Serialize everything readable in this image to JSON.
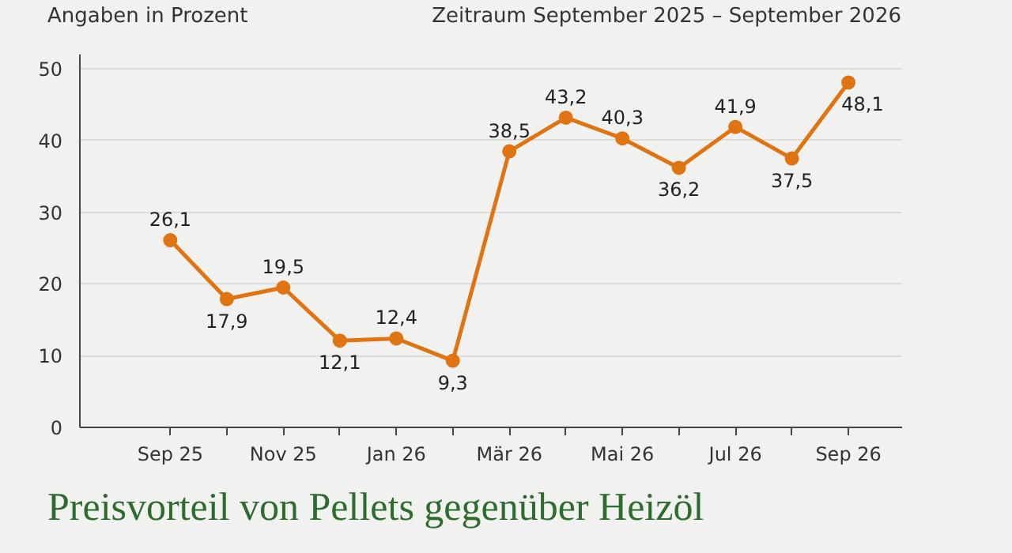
{
  "chart_data": {
    "type": "line",
    "title": "Preisvorteil von Pellets gegenüber Heizöl",
    "subtitle": "Zeitraum September 2025 – September 2026",
    "ylabel": "Angaben in Prozent",
    "categories": [
      "Sep 25",
      null,
      "Nov 25",
      null,
      "Jan 26",
      null,
      "Mär 26",
      null,
      "Mai 26",
      null,
      "Jul 26",
      null,
      "Sep 26"
    ],
    "series": [
      {
        "color": "#e07412",
        "values": [
          26.1,
          17.9,
          19.5,
          12.1,
          12.4,
          9.3,
          38.5,
          43.2,
          40.3,
          36.2,
          41.9,
          37.5,
          48.1
        ],
        "value_labels": [
          "26,1",
          "17,9",
          "19,5",
          "12,1",
          "12,4",
          "9,3",
          "38,5",
          "43,2",
          "40,3",
          "36,2",
          "41,9",
          "37,5",
          "48,1"
        ]
      }
    ],
    "ylim": [
      0,
      52
    ],
    "yticks": [
      0,
      10,
      20,
      30,
      40,
      50
    ],
    "grid": "y",
    "marker": "circle",
    "line_style": "solid"
  }
}
